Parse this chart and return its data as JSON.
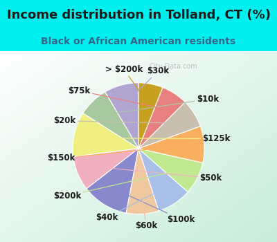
{
  "title": "Income distribution in Tolland, CT (%)",
  "subtitle": "Black or African American residents",
  "watermark": "City-Data.com",
  "bg_cyan": "#00EFEF",
  "bg_chart": "#e0f5ec",
  "labels": [
    "$30k",
    "$10k",
    "$125k",
    "$50k",
    "$100k",
    "$60k",
    "$40k",
    "$200k",
    "$150k",
    "$20k",
    "$75k",
    "> $200k"
  ],
  "values": [
    8.5,
    7.5,
    11.0,
    8.5,
    11.5,
    8.0,
    8.5,
    8.0,
    9.0,
    7.0,
    6.5,
    6.0
  ],
  "colors": [
    "#b0a5d0",
    "#a8c8a0",
    "#f0f080",
    "#f0b0c0",
    "#8888cc",
    "#f0c8a0",
    "#a8c0e8",
    "#c0e890",
    "#f8b060",
    "#c8bfb0",
    "#e88080",
    "#c8a020"
  ],
  "label_fontsize": 8.5,
  "title_fontsize": 13,
  "subtitle_fontsize": 10,
  "startangle": 90,
  "title_color": "#1a1a1a",
  "subtitle_color": "#336688"
}
